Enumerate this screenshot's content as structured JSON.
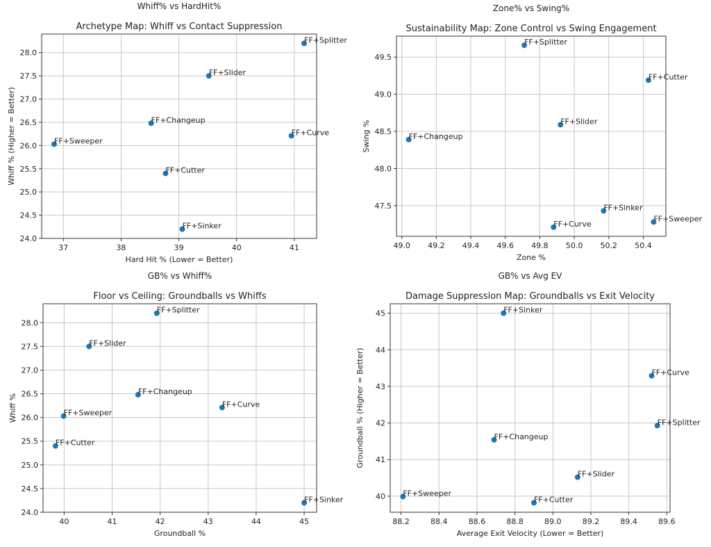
{
  "chart_data": [
    {
      "type": "scatter",
      "figure_title": "Whiff% vs HardHit%",
      "title": "Archetype Map: Whiff vs Contact Suppression",
      "xlabel": "Hard Hit % (Lower = Better)",
      "ylabel": "Whiff % (Higher = Better)",
      "xticks": [
        37,
        38,
        39,
        40,
        41
      ],
      "yticks": [
        24.0,
        24.5,
        25.0,
        25.5,
        26.0,
        26.5,
        27.0,
        27.5,
        28.0
      ],
      "xdec": 0,
      "ydec": 1,
      "grid": true,
      "points": [
        {
          "label": "FF+Splitter",
          "x": 41.17,
          "y": 28.2
        },
        {
          "label": "FF+Slider",
          "x": 39.52,
          "y": 27.5
        },
        {
          "label": "FF+Changeup",
          "x": 38.52,
          "y": 26.48
        },
        {
          "label": "FF+Curve",
          "x": 40.95,
          "y": 26.21
        },
        {
          "label": "FF+Sweeper",
          "x": 36.84,
          "y": 26.03
        },
        {
          "label": "FF+Cutter",
          "x": 38.77,
          "y": 25.4
        },
        {
          "label": "FF+Sinker",
          "x": 39.06,
          "y": 24.2
        }
      ]
    },
    {
      "type": "scatter",
      "figure_title": "Zone% vs Swing%",
      "title": "Sustainability Map: Zone Control vs Swing Engagement",
      "xlabel": "Zone %",
      "ylabel": "Swing %",
      "xticks": [
        49.0,
        49.2,
        49.4,
        49.6,
        49.8,
        50.0,
        50.2,
        50.4
      ],
      "yticks": [
        47.5,
        48.0,
        48.5,
        49.0,
        49.5
      ],
      "xdec": 1,
      "ydec": 1,
      "grid": true,
      "points": [
        {
          "label": "FF+Splitter",
          "x": 49.71,
          "y": 49.66
        },
        {
          "label": "FF+Cutter",
          "x": 50.43,
          "y": 49.19
        },
        {
          "label": "FF+Slider",
          "x": 49.92,
          "y": 48.59
        },
        {
          "label": "FF+Changeup",
          "x": 49.04,
          "y": 48.39
        },
        {
          "label": "FF+Sinker",
          "x": 50.17,
          "y": 47.43
        },
        {
          "label": "FF+Sweeper",
          "x": 50.46,
          "y": 47.28
        },
        {
          "label": "FF+Curve",
          "x": 49.88,
          "y": 47.21
        }
      ]
    },
    {
      "type": "scatter",
      "figure_title": "GB% vs Whiff%",
      "title": "Floor vs Ceiling: Groundballs vs Whiffs",
      "xlabel": "Groundball %",
      "ylabel": "Whiff %",
      "xticks": [
        40,
        41,
        42,
        43,
        44,
        45
      ],
      "yticks": [
        24.0,
        24.5,
        25.0,
        25.5,
        26.0,
        26.5,
        27.0,
        27.5,
        28.0
      ],
      "xdec": 0,
      "ydec": 1,
      "grid": true,
      "points": [
        {
          "label": "FF+Splitter",
          "x": 41.93,
          "y": 28.2
        },
        {
          "label": "FF+Slider",
          "x": 40.52,
          "y": 27.5
        },
        {
          "label": "FF+Changeup",
          "x": 41.54,
          "y": 26.48
        },
        {
          "label": "FF+Curve",
          "x": 43.29,
          "y": 26.21
        },
        {
          "label": "FF+Sweeper",
          "x": 39.99,
          "y": 26.03
        },
        {
          "label": "FF+Cutter",
          "x": 39.82,
          "y": 25.4
        },
        {
          "label": "FF+Sinker",
          "x": 45.0,
          "y": 24.2
        }
      ]
    },
    {
      "type": "scatter",
      "figure_title": "GB% vs Avg EV",
      "title": "Damage Suppression Map: Groundballs vs Exit Velocity",
      "xlabel": "Average Exit Velocity (Lower = Better)",
      "ylabel": "Groundball % (Higher = Better)",
      "xticks": [
        88.2,
        88.4,
        88.6,
        88.8,
        89.0,
        89.2,
        89.4,
        89.6
      ],
      "yticks": [
        40,
        41,
        42,
        43,
        44,
        45
      ],
      "xdec": 1,
      "ydec": 0,
      "grid": true,
      "points": [
        {
          "label": "FF+Sinker",
          "x": 88.74,
          "y": 45.0
        },
        {
          "label": "FF+Curve",
          "x": 89.52,
          "y": 43.29
        },
        {
          "label": "FF+Splitter",
          "x": 89.55,
          "y": 41.93
        },
        {
          "label": "FF+Changeup",
          "x": 88.69,
          "y": 41.54
        },
        {
          "label": "FF+Slider",
          "x": 89.13,
          "y": 40.52
        },
        {
          "label": "FF+Sweeper",
          "x": 88.21,
          "y": 39.99
        },
        {
          "label": "FF+Cutter",
          "x": 88.9,
          "y": 39.82
        }
      ]
    }
  ],
  "colors": {
    "marker": "#1f77b4",
    "grid": "#b0b0b0",
    "axis": "#333333"
  }
}
